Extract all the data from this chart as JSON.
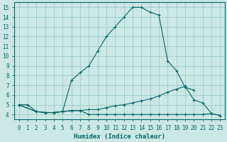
{
  "title": "",
  "xlabel": "Humidex (Indice chaleur)",
  "ylabel": "",
  "background_color": "#cce8e4",
  "grid_color": "#99cccc",
  "line_color": "#006666",
  "xlim": [
    -0.5,
    23.5
  ],
  "ylim": [
    3.5,
    15.5
  ],
  "xticks": [
    0,
    1,
    2,
    3,
    4,
    5,
    6,
    7,
    8,
    9,
    10,
    11,
    12,
    13,
    14,
    15,
    16,
    17,
    18,
    19,
    20,
    21,
    22,
    23
  ],
  "yticks": [
    4,
    5,
    6,
    7,
    8,
    9,
    10,
    11,
    12,
    13,
    14,
    15
  ],
  "line1_x": [
    0,
    1,
    2,
    3,
    4,
    5,
    6,
    7,
    8,
    9,
    10,
    11,
    12,
    13,
    14,
    15,
    16,
    17,
    18,
    19,
    20
  ],
  "line1_y": [
    5.0,
    5.0,
    4.3,
    4.2,
    4.2,
    4.3,
    7.5,
    8.3,
    9.0,
    10.5,
    12.0,
    13.0,
    14.0,
    15.0,
    15.0,
    14.5,
    14.2,
    9.5,
    8.5,
    6.8,
    6.5
  ],
  "line2_x": [
    0,
    2,
    3,
    4,
    5,
    6,
    7,
    8,
    9,
    10,
    11,
    12,
    13,
    14,
    15,
    16,
    17,
    18,
    19,
    20,
    21,
    22,
    23
  ],
  "line2_y": [
    5.0,
    4.3,
    4.2,
    4.2,
    4.3,
    4.4,
    4.4,
    4.0,
    4.0,
    4.0,
    4.0,
    4.0,
    4.0,
    4.0,
    4.0,
    4.0,
    4.0,
    4.0,
    4.0,
    4.0,
    4.0,
    4.1,
    3.9
  ],
  "line3_x": [
    0,
    2,
    3,
    4,
    5,
    6,
    7,
    8,
    9,
    10,
    11,
    12,
    13,
    14,
    15,
    16,
    17,
    18,
    19,
    20,
    21,
    22,
    23
  ],
  "line3_y": [
    5.0,
    4.3,
    4.2,
    4.2,
    4.3,
    4.4,
    4.4,
    4.5,
    4.5,
    4.7,
    4.9,
    5.0,
    5.2,
    5.4,
    5.6,
    5.9,
    6.3,
    6.6,
    6.9,
    5.5,
    5.2,
    4.1,
    3.9
  ],
  "xlabel_fontsize": 6.5,
  "tick_fontsize": 5.5
}
